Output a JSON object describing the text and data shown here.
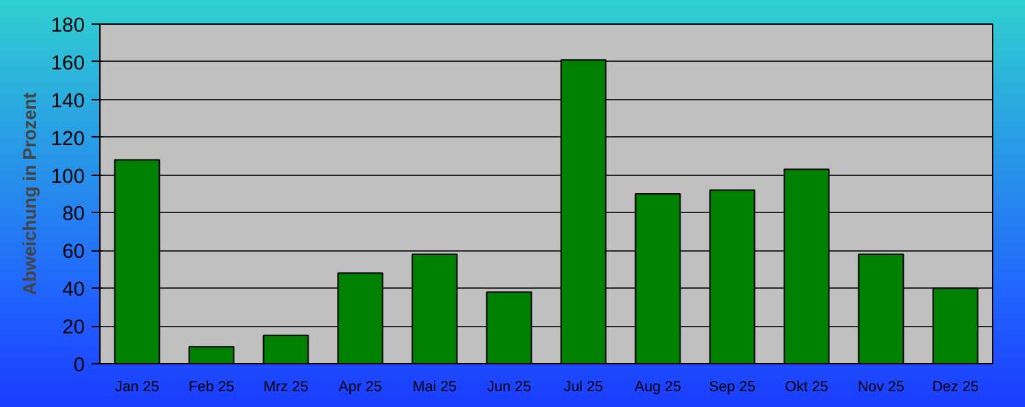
{
  "chart_data": {
    "type": "bar",
    "ylabel": "Abweichung in Prozent",
    "categories": [
      "Jan 25",
      "Feb 25",
      "Mrz 25",
      "Apr 25",
      "Mai 25",
      "Jun 25",
      "Jul 25",
      "Aug 25",
      "Sep 25",
      "Okt 25",
      "Nov 25",
      "Dez 25"
    ],
    "values": [
      108,
      9,
      15,
      48,
      58,
      38,
      161,
      90,
      92,
      103,
      58,
      40
    ],
    "color": "#008000",
    "ylim": [
      0,
      180
    ],
    "yticks": [
      0,
      20,
      40,
      60,
      80,
      100,
      120,
      140,
      160,
      180
    ],
    "grid": "y"
  }
}
